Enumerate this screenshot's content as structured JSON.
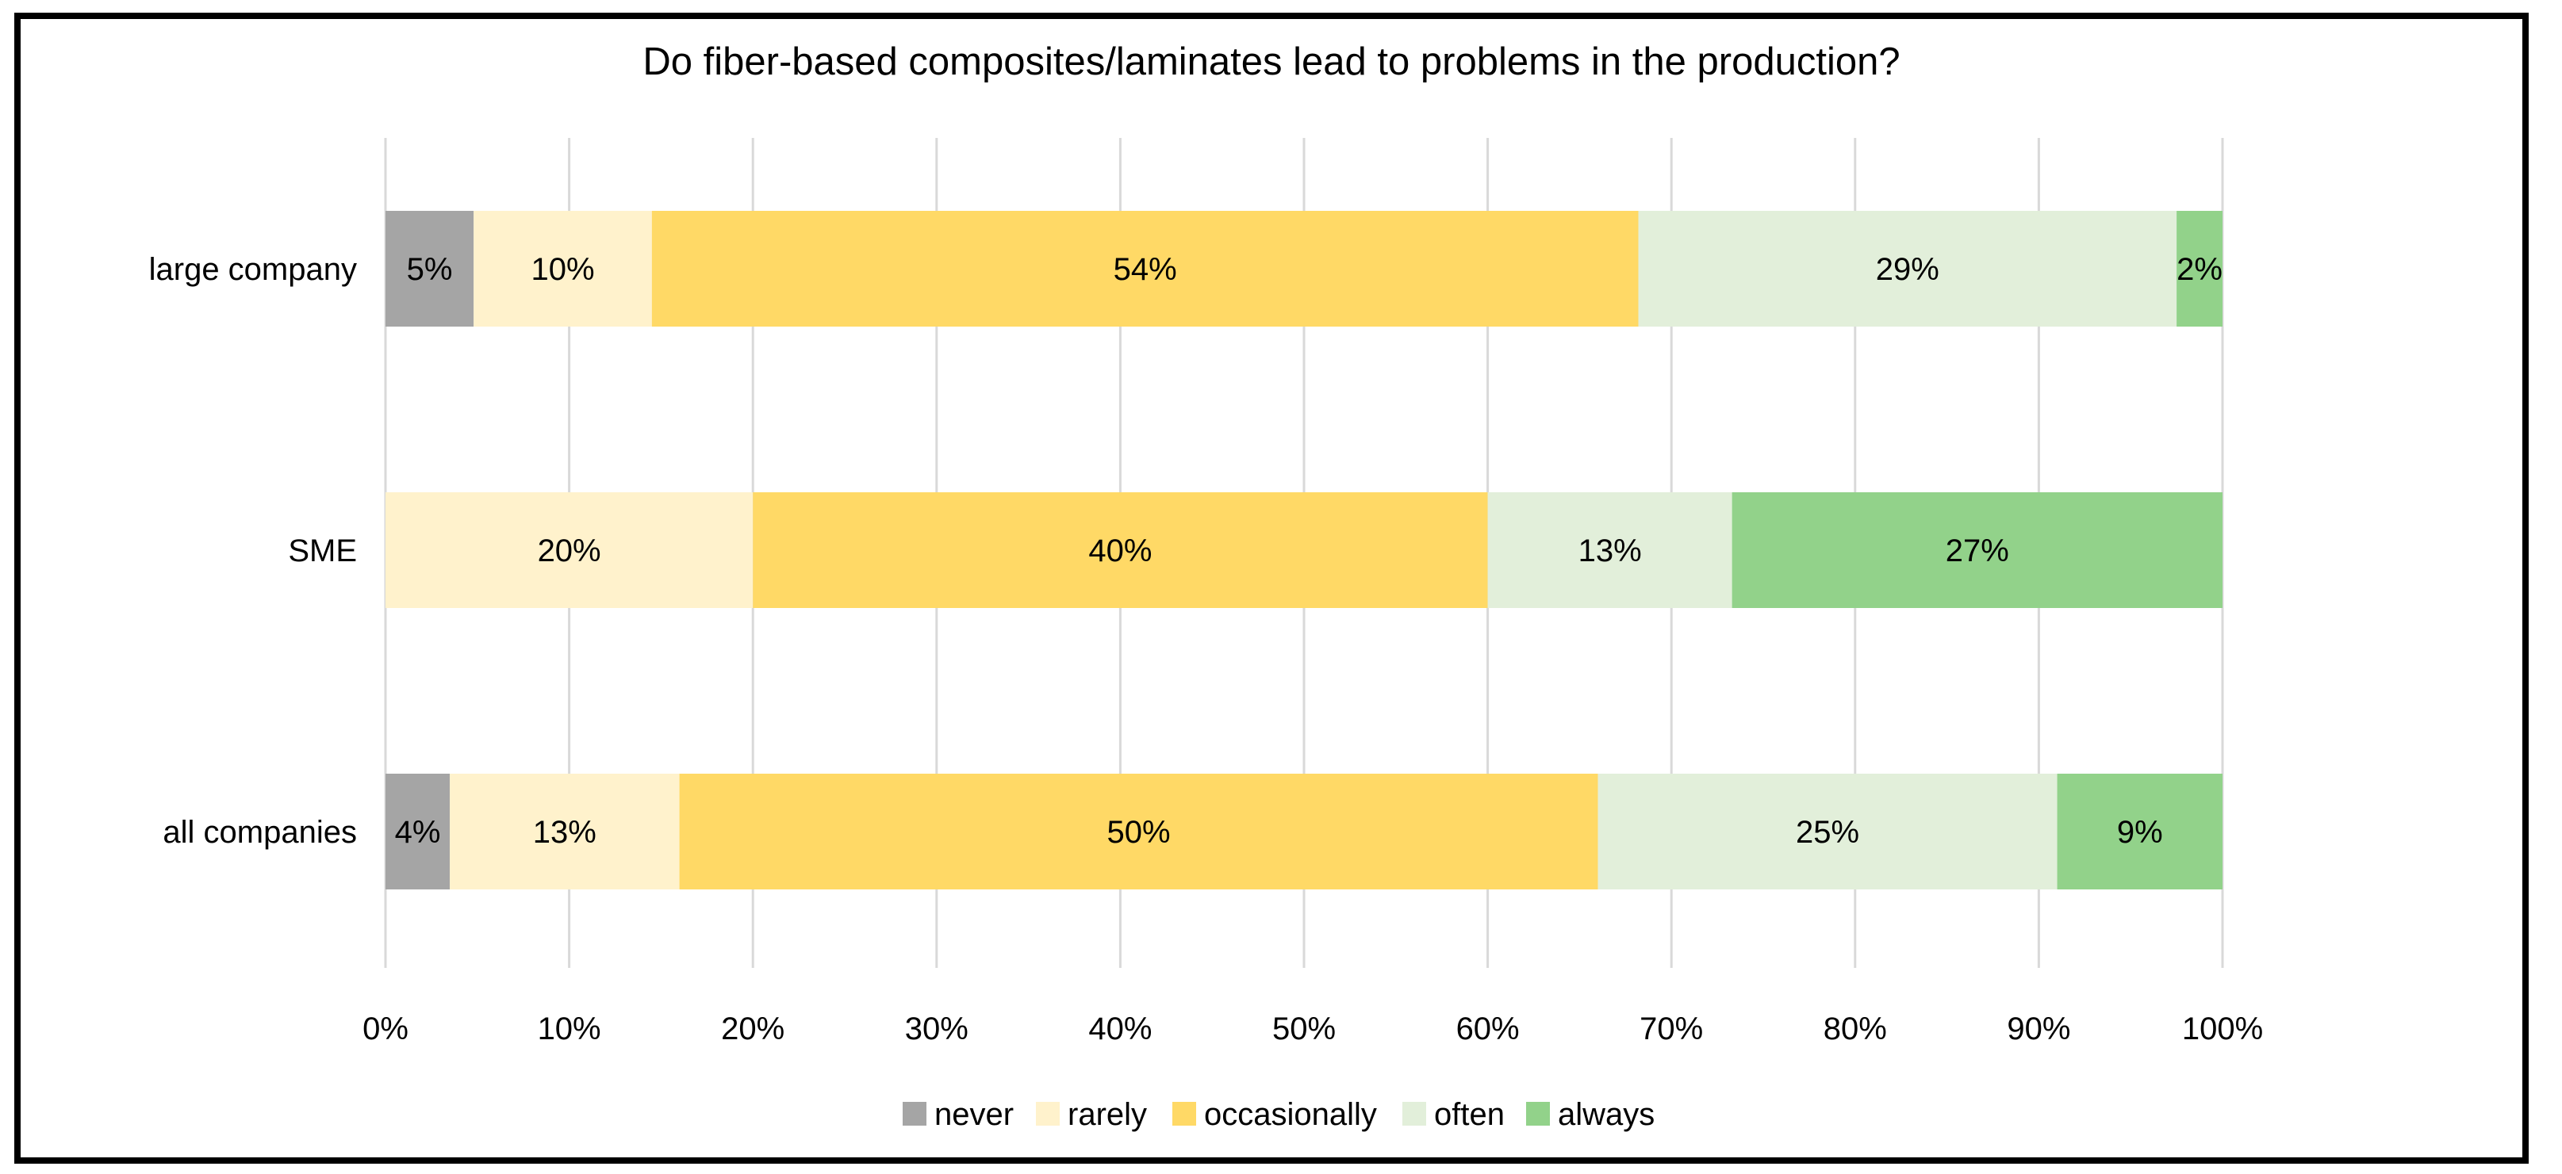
{
  "chart_data": {
    "type": "bar",
    "orientation": "horizontal",
    "stacked": true,
    "percent_stacked": true,
    "title": "Do fiber-based composites/laminates lead to problems in the production?",
    "xlabel": "",
    "ylabel": "",
    "xlim": [
      0,
      100
    ],
    "categories": [
      "large company",
      "SME",
      "all companies"
    ],
    "x_ticks": [
      "0%",
      "10%",
      "20%",
      "30%",
      "40%",
      "50%",
      "60%",
      "70%",
      "80%",
      "90%",
      "100%"
    ],
    "grid": true,
    "legend_position": "bottom",
    "series": [
      {
        "name": "never",
        "color": "#a5a5a5",
        "values": [
          4.8,
          0,
          3.5
        ],
        "labels": [
          "5%",
          "",
          "4%"
        ]
      },
      {
        "name": "rarely",
        "color": "#fff2cc",
        "values": [
          9.7,
          20,
          12.5
        ],
        "labels": [
          "10%",
          "20%",
          "13%"
        ]
      },
      {
        "name": "occasionally",
        "color": "#ffd966",
        "values": [
          53.7,
          40,
          50
        ],
        "labels": [
          "54%",
          "40%",
          "50%"
        ]
      },
      {
        "name": "often",
        "color": "#e2efda",
        "values": [
          29.3,
          13.3,
          25
        ],
        "labels": [
          "29%",
          "13%",
          "25%"
        ]
      },
      {
        "name": "always",
        "color": "#92d28a",
        "values": [
          2.5,
          26.7,
          9
        ],
        "labels": [
          "2%",
          "27%",
          "9%"
        ]
      }
    ]
  }
}
